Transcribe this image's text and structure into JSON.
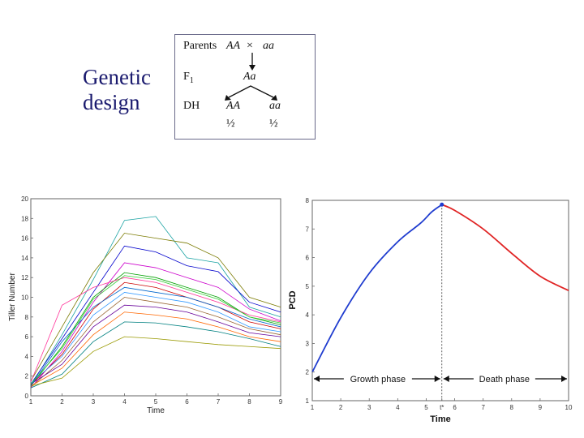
{
  "slide": {
    "title_line1": "Genetic",
    "title_line2": "design"
  },
  "genetics": {
    "parents_label": "Parents",
    "parent1": "AA",
    "cross_symbol": "×",
    "parent2": "aa",
    "f1_label": "F",
    "f1_sub": "1",
    "f1_genotype": "Aa",
    "dh_label": "DH",
    "dh_genotype1": "AA",
    "dh_genotype2": "aa",
    "dh_ratio1": "½",
    "dh_ratio2": "½"
  },
  "left_plot": {
    "ylabel": "Tiller Number",
    "xlabel": "Time",
    "xticks": [
      "1",
      "2",
      "3",
      "4",
      "5",
      "6",
      "7",
      "8",
      "9"
    ],
    "yticks": [
      "0",
      "2",
      "4",
      "6",
      "8",
      "10",
      "12",
      "14",
      "16",
      "18",
      "20"
    ],
    "xlim": [
      1,
      9
    ],
    "ylim": [
      0,
      20
    ]
  },
  "right_plot": {
    "ylabel": "PCD",
    "xlabel": "Time",
    "xticks": [
      "1",
      "2",
      "3",
      "4",
      "5",
      "t*",
      "6",
      "7",
      "8",
      "9",
      "10"
    ],
    "yticks": [
      "1",
      "2",
      "3",
      "4",
      "5",
      "6",
      "7",
      "8"
    ],
    "xlim": [
      1,
      10
    ],
    "ylim": [
      1,
      8
    ],
    "t_star": 5.55,
    "peak_value": 7.85,
    "growth_label": "Growth phase",
    "death_label": "Death phase",
    "growth_color": "#1f3ccf",
    "death_color": "#e02424"
  },
  "chart_data": [
    {
      "type": "line",
      "xlabel": "Time",
      "ylabel": "Tiller Number",
      "x": [
        1,
        2,
        3,
        4,
        5,
        6,
        7,
        8,
        9
      ],
      "ylim": [
        0,
        20
      ],
      "series": [
        {
          "values": [
            1.0,
            6.2,
            11.8,
            17.8,
            18.2,
            14.0,
            13.5,
            9.0,
            8.0
          ]
        },
        {
          "values": [
            1.5,
            7.0,
            12.5,
            16.5,
            16.0,
            15.5,
            14.0,
            10.0,
            9.0
          ]
        },
        {
          "values": [
            1.2,
            5.8,
            10.5,
            15.2,
            14.6,
            13.2,
            12.6,
            9.5,
            8.5
          ]
        },
        {
          "values": [
            0.8,
            4.5,
            9.5,
            13.5,
            13.0,
            12.0,
            11.0,
            8.8,
            7.6
          ]
        },
        {
          "values": [
            1.0,
            5.0,
            10.0,
            12.5,
            12.0,
            11.0,
            10.0,
            8.0,
            7.2
          ]
        },
        {
          "values": [
            1.1,
            4.2,
            8.8,
            11.5,
            11.0,
            10.0,
            9.0,
            7.5,
            6.8
          ]
        },
        {
          "values": [
            1.3,
            4.0,
            8.2,
            10.5,
            10.0,
            9.5,
            8.5,
            7.0,
            6.5
          ]
        },
        {
          "values": [
            0.9,
            3.6,
            7.5,
            10.0,
            9.5,
            9.0,
            8.0,
            6.8,
            6.2
          ]
        },
        {
          "values": [
            1.2,
            3.2,
            7.0,
            9.2,
            9.0,
            8.5,
            7.5,
            6.4,
            6.0
          ]
        },
        {
          "values": [
            1.0,
            2.8,
            6.2,
            8.5,
            8.2,
            7.8,
            7.0,
            6.0,
            5.5
          ]
        },
        {
          "values": [
            0.8,
            2.2,
            5.5,
            7.5,
            7.4,
            7.0,
            6.5,
            5.8,
            5.0
          ]
        },
        {
          "values": [
            1.0,
            1.8,
            4.5,
            6.0,
            5.8,
            5.5,
            5.2,
            5.0,
            4.8
          ]
        },
        {
          "values": [
            1.4,
            9.2,
            11.0,
            12.0,
            11.5,
            10.5,
            9.5,
            8.2,
            7.5
          ]
        },
        {
          "values": [
            1.0,
            5.5,
            9.0,
            11.0,
            10.5,
            10.0,
            9.0,
            7.8,
            7.0
          ]
        },
        {
          "values": [
            1.2,
            4.8,
            9.8,
            12.2,
            11.8,
            10.8,
            9.8,
            8.0,
            7.4
          ]
        }
      ]
    },
    {
      "type": "line",
      "xlabel": "Time",
      "ylabel": "PCD",
      "xlim": [
        1,
        10
      ],
      "ylim": [
        1,
        8
      ],
      "series": [
        {
          "values": [
            2.0,
            3.9,
            5.45,
            6.55,
            7.2,
            7.6,
            7.85
          ]
        },
        {
          "values": [
            7.85,
            7.65,
            7.0,
            6.15,
            5.35,
            4.85
          ]
        }
      ],
      "x_growth": [
        1,
        2,
        3,
        4,
        4.8,
        5.2,
        5.55
      ],
      "x_death": [
        5.55,
        6,
        7,
        8,
        9,
        10
      ]
    }
  ]
}
